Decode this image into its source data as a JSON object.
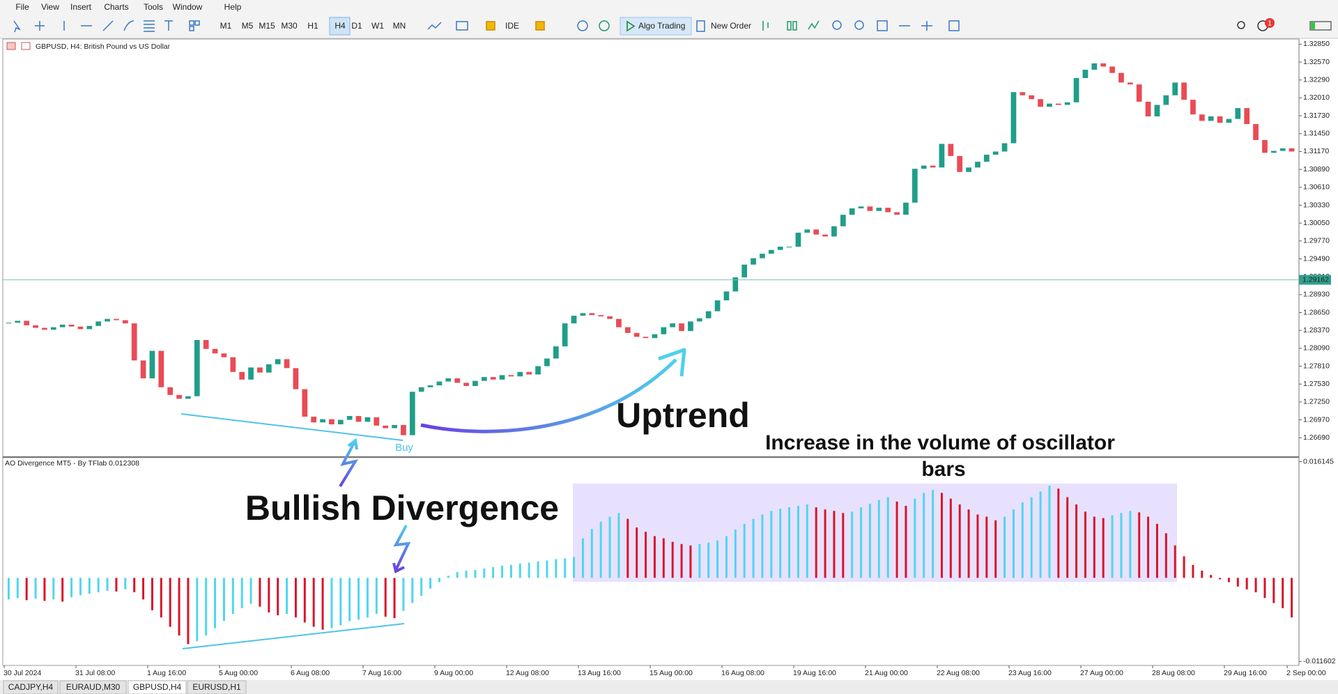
{
  "menu": [
    "File",
    "View",
    "Insert",
    "Charts",
    "Tools",
    "Window",
    "Help"
  ],
  "toolbar": {
    "timeframes": [
      "M1",
      "M5",
      "M15",
      "M30",
      "H1",
      "H4",
      "D1",
      "W1",
      "MN"
    ],
    "ide": "IDE",
    "algo_trading": "Algo Trading",
    "new_order": "New Order",
    "badge": "1"
  },
  "chart_data": [
    {
      "type": "candlestick",
      "title": "GBPUSD, H4:  British Pound vs US Dollar",
      "up_color": "#1f9e89",
      "down_color": "#ea4b55",
      "categories": [
        "30 Jul 2024",
        null,
        null,
        null,
        null,
        null,
        null,
        null,
        "31 Jul 08:00",
        null,
        null,
        null,
        null,
        null,
        null,
        null,
        "1 Aug 16:00",
        null,
        null,
        null,
        null,
        null,
        null,
        null,
        "5 Aug 00:00",
        null,
        null,
        null,
        null,
        null,
        null,
        null,
        "6 Aug 08:00",
        null,
        null,
        null,
        null,
        null,
        null,
        null,
        "7 Aug 16:00",
        null,
        null,
        null,
        null,
        null,
        null,
        null,
        "9 Aug 00:00",
        null,
        null,
        null,
        null,
        null,
        null,
        null,
        "12 Aug 08:00",
        null,
        null,
        null,
        null,
        null,
        null,
        null,
        "13 Aug 16:00",
        null,
        null,
        null,
        null,
        null,
        null,
        null,
        "15 Aug 00:00",
        null,
        null,
        null,
        null,
        null,
        null,
        null,
        "16 Aug 08:00",
        null,
        null,
        null,
        null,
        null,
        null,
        null,
        "19 Aug 16:00",
        null,
        null,
        null,
        null,
        null,
        null,
        null,
        "21 Aug 00:00",
        null,
        null,
        null,
        null,
        null,
        null,
        null,
        "22 Aug 08:00",
        null,
        null,
        null,
        null,
        null,
        null,
        null,
        "23 Aug 16:00",
        null,
        null,
        null,
        null,
        null,
        null,
        null,
        "27 Aug 00:00",
        null,
        null,
        null,
        null,
        null,
        null,
        null,
        "28 Aug 08:00",
        null,
        null,
        null,
        null,
        null,
        null,
        null,
        "29 Aug 16:00",
        null,
        null,
        null,
        null,
        null,
        null,
        "2 Sep 00:00"
      ],
      "values": [
        1.2849,
        1.2852,
        1.2845,
        1.2841,
        1.2838,
        1.2842,
        1.2846,
        1.2843,
        1.2839,
        1.2844,
        1.2851,
        1.2855,
        1.2853,
        1.2848,
        1.279,
        1.2762,
        1.2805,
        1.2748,
        1.2736,
        1.273,
        1.2734,
        1.2822,
        1.2808,
        1.2801,
        1.2795,
        1.2772,
        1.276,
        1.2779,
        1.2771,
        1.2784,
        1.2792,
        1.2778,
        1.2745,
        1.2702,
        1.2693,
        1.2698,
        1.269,
        1.2697,
        1.2703,
        1.2694,
        1.2701,
        1.2688,
        1.2684,
        1.2689,
        1.2673,
        1.2741,
        1.2748,
        1.2751,
        1.2757,
        1.2762,
        1.2755,
        1.275,
        1.2758,
        1.2764,
        1.276,
        1.2767,
        1.2765,
        1.2772,
        1.2768,
        1.2781,
        1.2793,
        1.2812,
        1.2848,
        1.286,
        1.2864,
        1.2861,
        1.2859,
        1.2855,
        1.2842,
        1.2833,
        1.2827,
        1.2825,
        1.2831,
        1.2842,
        1.2848,
        1.2836,
        1.2851,
        1.2856,
        1.2867,
        1.2884,
        1.2898,
        1.292,
        1.294,
        1.295,
        1.2957,
        1.2963,
        1.2968,
        1.2968,
        1.299,
        1.2995,
        1.2987,
        1.2984,
        1.3,
        1.3018,
        1.3028,
        1.3031,
        1.3024,
        1.3029,
        1.3022,
        1.3018,
        1.3037,
        1.309,
        1.3095,
        1.3092,
        1.3129,
        1.311,
        1.3085,
        1.3092,
        1.3101,
        1.3112,
        1.3117,
        1.313,
        1.321,
        1.3205,
        1.3199,
        1.3187,
        1.3192,
        1.319,
        1.3194,
        1.3232,
        1.3245,
        1.3255,
        1.325,
        1.324,
        1.3225,
        1.3222,
        1.3195,
        1.3172,
        1.319,
        1.3205,
        1.3225,
        1.3198,
        1.3175,
        1.3165,
        1.3172,
        1.3162,
        1.3168,
        1.3185,
        1.316,
        1.3135,
        1.3115,
        1.3118,
        1.3122,
        1.3117
      ],
      "ylim": [
        1.26398,
        1.3292
      ],
      "yticks": [
        {
          "value": 1.3285,
          "label": "1.32850"
        },
        {
          "value": 1.3257,
          "label": "1.32570"
        },
        {
          "value": 1.3229,
          "label": "1.32290"
        },
        {
          "value": 1.3201,
          "label": "1.32010"
        },
        {
          "value": 1.3173,
          "label": "1.31730"
        },
        {
          "value": 1.3145,
          "label": "1.31450"
        },
        {
          "value": 1.3117,
          "label": "1.31170"
        },
        {
          "value": 1.3089,
          "label": "1.30890"
        },
        {
          "value": 1.3061,
          "label": "1.30610"
        },
        {
          "value": 1.3033,
          "label": "1.30330"
        },
        {
          "value": 1.3005,
          "label": "1.30050"
        },
        {
          "value": 1.2977,
          "label": "1.29770"
        },
        {
          "value": 1.2949,
          "label": "1.29490"
        },
        {
          "value": 1.2921,
          "label": "1.29210"
        },
        {
          "value": 1.2893,
          "label": "1.28930"
        },
        {
          "value": 1.2865,
          "label": "1.28650"
        },
        {
          "value": 1.2837,
          "label": "1.28370"
        },
        {
          "value": 1.2809,
          "label": "1.28090"
        },
        {
          "value": 1.2781,
          "label": "1.27810"
        },
        {
          "value": 1.2753,
          "label": "1.27530"
        },
        {
          "value": 1.2725,
          "label": "1.27250"
        },
        {
          "value": 1.2697,
          "label": "1.26970"
        },
        {
          "value": 1.2669,
          "label": "1.26690"
        }
      ],
      "current_price": 1.29162
    },
    {
      "type": "bar",
      "title": "AO Divergence MT5 - By TFlab 0.012308",
      "up_color": "#4fd6ef",
      "down_color": "#d8152b",
      "values": [
        -0.003,
        -0.0028,
        -0.0031,
        -0.0029,
        -0.0032,
        -0.003,
        -0.0033,
        -0.0027,
        -0.0024,
        -0.0022,
        -0.002,
        -0.0018,
        -0.0019,
        -0.0016,
        -0.002,
        -0.003,
        -0.0045,
        -0.0055,
        -0.0068,
        -0.008,
        -0.0092,
        -0.0088,
        -0.008,
        -0.007,
        -0.006,
        -0.005,
        -0.0042,
        -0.0036,
        -0.004,
        -0.0048,
        -0.0052,
        -0.005,
        -0.0055,
        -0.0062,
        -0.0068,
        -0.0072,
        -0.007,
        -0.0066,
        -0.006,
        -0.0058,
        -0.0055,
        -0.005,
        -0.0054,
        -0.0056,
        -0.0046,
        -0.0035,
        -0.0025,
        -0.0015,
        -0.0006,
        0.0003,
        0.0008,
        0.001,
        0.0011,
        0.0013,
        0.0015,
        0.0017,
        0.0018,
        0.002,
        0.0021,
        0.0023,
        0.0024,
        0.0026,
        0.0027,
        0.0029,
        0.0055,
        0.0068,
        0.0078,
        0.0085,
        0.009,
        0.0082,
        0.007,
        0.0064,
        0.0058,
        0.0055,
        0.005,
        0.0047,
        0.0045,
        0.0047,
        0.0049,
        0.0052,
        0.0058,
        0.0067,
        0.0075,
        0.0082,
        0.0088,
        0.0093,
        0.0096,
        0.0098,
        0.01,
        0.0102,
        0.0098,
        0.0095,
        0.0093,
        0.009,
        0.0092,
        0.0098,
        0.0103,
        0.0108,
        0.0112,
        0.0106,
        0.01,
        0.011,
        0.0118,
        0.0122,
        0.0118,
        0.011,
        0.0102,
        0.0095,
        0.0088,
        0.0085,
        0.008,
        0.0085,
        0.0095,
        0.0105,
        0.0112,
        0.012,
        0.0128,
        0.0124,
        0.0112,
        0.0102,
        0.0092,
        0.0085,
        0.0083,
        0.0087,
        0.009,
        0.0093,
        0.0091,
        0.0085,
        0.0075,
        0.0062,
        0.0045,
        0.003,
        0.0018,
        0.001,
        0.0004,
        -0.0002,
        -0.0006,
        -0.0012,
        -0.0016,
        -0.002,
        -0.0028,
        -0.0035,
        -0.0042,
        -0.0055
      ],
      "ylim": [
        -0.012065,
        0.016579
      ],
      "yticks": [
        0.016145,
        -0.011602
      ]
    }
  ],
  "annotations": {
    "buy": "Buy",
    "uptrend": "Uptrend",
    "increase": [
      "Increase in the volume of oscillator",
      "bars"
    ],
    "bullish": "Bullish Divergence"
  },
  "tabs": [
    "CADJPY,H4",
    "EURAUD,M30",
    "GBPUSD,H4",
    "EURUSD,H1"
  ]
}
